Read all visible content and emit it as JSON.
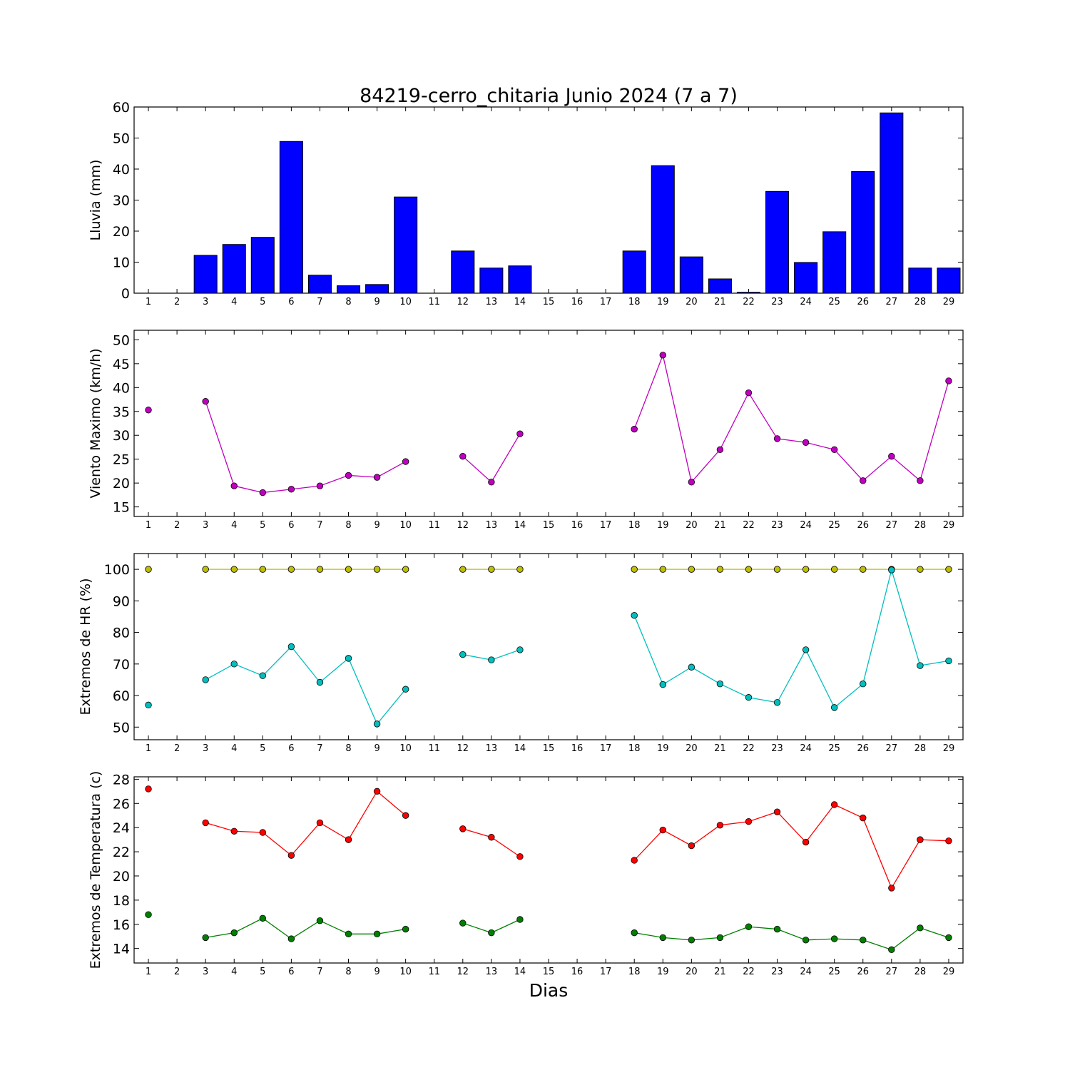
{
  "title": "84219-cerro_chitaria Junio 2024  (7 a 7)",
  "xlabel": "Dias",
  "chart_data": [
    {
      "id": "lluvia",
      "type": "bar",
      "ylabel": "Lluvia (mm)",
      "ylim": [
        0,
        60
      ],
      "yticks": [
        0,
        10,
        20,
        30,
        40,
        50,
        60
      ],
      "x": [
        1,
        2,
        3,
        4,
        5,
        6,
        7,
        8,
        9,
        10,
        11,
        12,
        13,
        14,
        15,
        16,
        17,
        18,
        19,
        20,
        21,
        22,
        23,
        24,
        25,
        26,
        27,
        28,
        29
      ],
      "xlim": [
        0.5,
        29.5
      ],
      "color": "#0000ff",
      "series": [
        {
          "values": [
            null,
            null,
            12.2,
            15.7,
            18.0,
            48.9,
            5.8,
            2.4,
            2.8,
            31.0,
            null,
            13.6,
            8.1,
            8.8,
            null,
            null,
            null,
            13.6,
            41.1,
            11.7,
            4.6,
            0.3,
            32.8,
            9.9,
            19.8,
            39.2,
            58.1,
            8.1,
            8.1
          ]
        }
      ]
    },
    {
      "id": "viento",
      "type": "line",
      "ylabel": "Viento Maximo (km/h)",
      "ylim": [
        13,
        52
      ],
      "yticks": [
        15,
        20,
        25,
        30,
        35,
        40,
        45,
        50
      ],
      "x": [
        1,
        2,
        3,
        4,
        5,
        6,
        7,
        8,
        9,
        10,
        11,
        12,
        13,
        14,
        15,
        16,
        17,
        18,
        19,
        20,
        21,
        22,
        23,
        24,
        25,
        26,
        27,
        28,
        29
      ],
      "xlim": [
        0.5,
        29.5
      ],
      "series": [
        {
          "color": "#bf00bf",
          "values": [
            35.3,
            null,
            37.1,
            19.4,
            18.0,
            18.7,
            19.4,
            21.6,
            21.2,
            24.5,
            null,
            25.6,
            20.2,
            30.3,
            null,
            null,
            null,
            31.3,
            46.8,
            20.2,
            27.0,
            38.9,
            29.3,
            28.5,
            27.0,
            20.5,
            25.6,
            20.5,
            41.4
          ]
        }
      ]
    },
    {
      "id": "hr",
      "type": "line",
      "ylabel": "Extremos de HR (%)",
      "ylim": [
        46,
        105
      ],
      "yticks": [
        50,
        60,
        70,
        80,
        90,
        100
      ],
      "x": [
        1,
        2,
        3,
        4,
        5,
        6,
        7,
        8,
        9,
        10,
        11,
        12,
        13,
        14,
        15,
        16,
        17,
        18,
        19,
        20,
        21,
        22,
        23,
        24,
        25,
        26,
        27,
        28,
        29
      ],
      "xlim": [
        0.5,
        29.5
      ],
      "series": [
        {
          "color": "#bfbf00",
          "values": [
            100,
            null,
            100,
            100,
            100,
            100,
            100,
            100,
            100,
            100,
            null,
            100,
            100,
            100,
            null,
            null,
            null,
            100,
            100,
            100,
            100,
            100,
            100,
            100,
            100,
            100,
            100,
            100,
            100
          ]
        },
        {
          "color": "#00bfbf",
          "values": [
            57.0,
            null,
            65.0,
            70.0,
            66.3,
            75.5,
            64.2,
            71.8,
            51.0,
            62.0,
            null,
            73.0,
            71.3,
            74.5,
            null,
            null,
            null,
            85.4,
            63.5,
            69.0,
            63.7,
            59.4,
            57.8,
            74.5,
            56.2,
            63.7,
            99.8,
            69.5,
            71.0
          ]
        }
      ]
    },
    {
      "id": "temperatura",
      "type": "line",
      "ylabel": "Extremos de Temperatura (c)",
      "ylim": [
        12.8,
        28.2
      ],
      "yticks": [
        14,
        16,
        18,
        20,
        22,
        24,
        26,
        28
      ],
      "x": [
        1,
        2,
        3,
        4,
        5,
        6,
        7,
        8,
        9,
        10,
        11,
        12,
        13,
        14,
        15,
        16,
        17,
        18,
        19,
        20,
        21,
        22,
        23,
        24,
        25,
        26,
        27,
        28,
        29
      ],
      "xlim": [
        0.5,
        29.5
      ],
      "series": [
        {
          "color": "#ff0000",
          "values": [
            27.2,
            null,
            24.4,
            23.7,
            23.6,
            21.7,
            24.4,
            23.0,
            27.0,
            25.0,
            null,
            23.9,
            23.2,
            21.6,
            null,
            null,
            null,
            21.3,
            23.8,
            22.5,
            24.2,
            24.5,
            25.3,
            22.8,
            25.9,
            24.8,
            19.0,
            23.0,
            22.9
          ]
        },
        {
          "color": "#008000",
          "values": [
            16.8,
            null,
            14.9,
            15.3,
            16.5,
            14.8,
            16.3,
            15.2,
            15.2,
            15.6,
            null,
            16.1,
            15.3,
            16.4,
            null,
            null,
            null,
            15.3,
            14.9,
            14.7,
            14.9,
            15.8,
            15.6,
            14.7,
            14.8,
            14.7,
            13.9,
            15.7,
            14.9
          ]
        }
      ]
    }
  ]
}
